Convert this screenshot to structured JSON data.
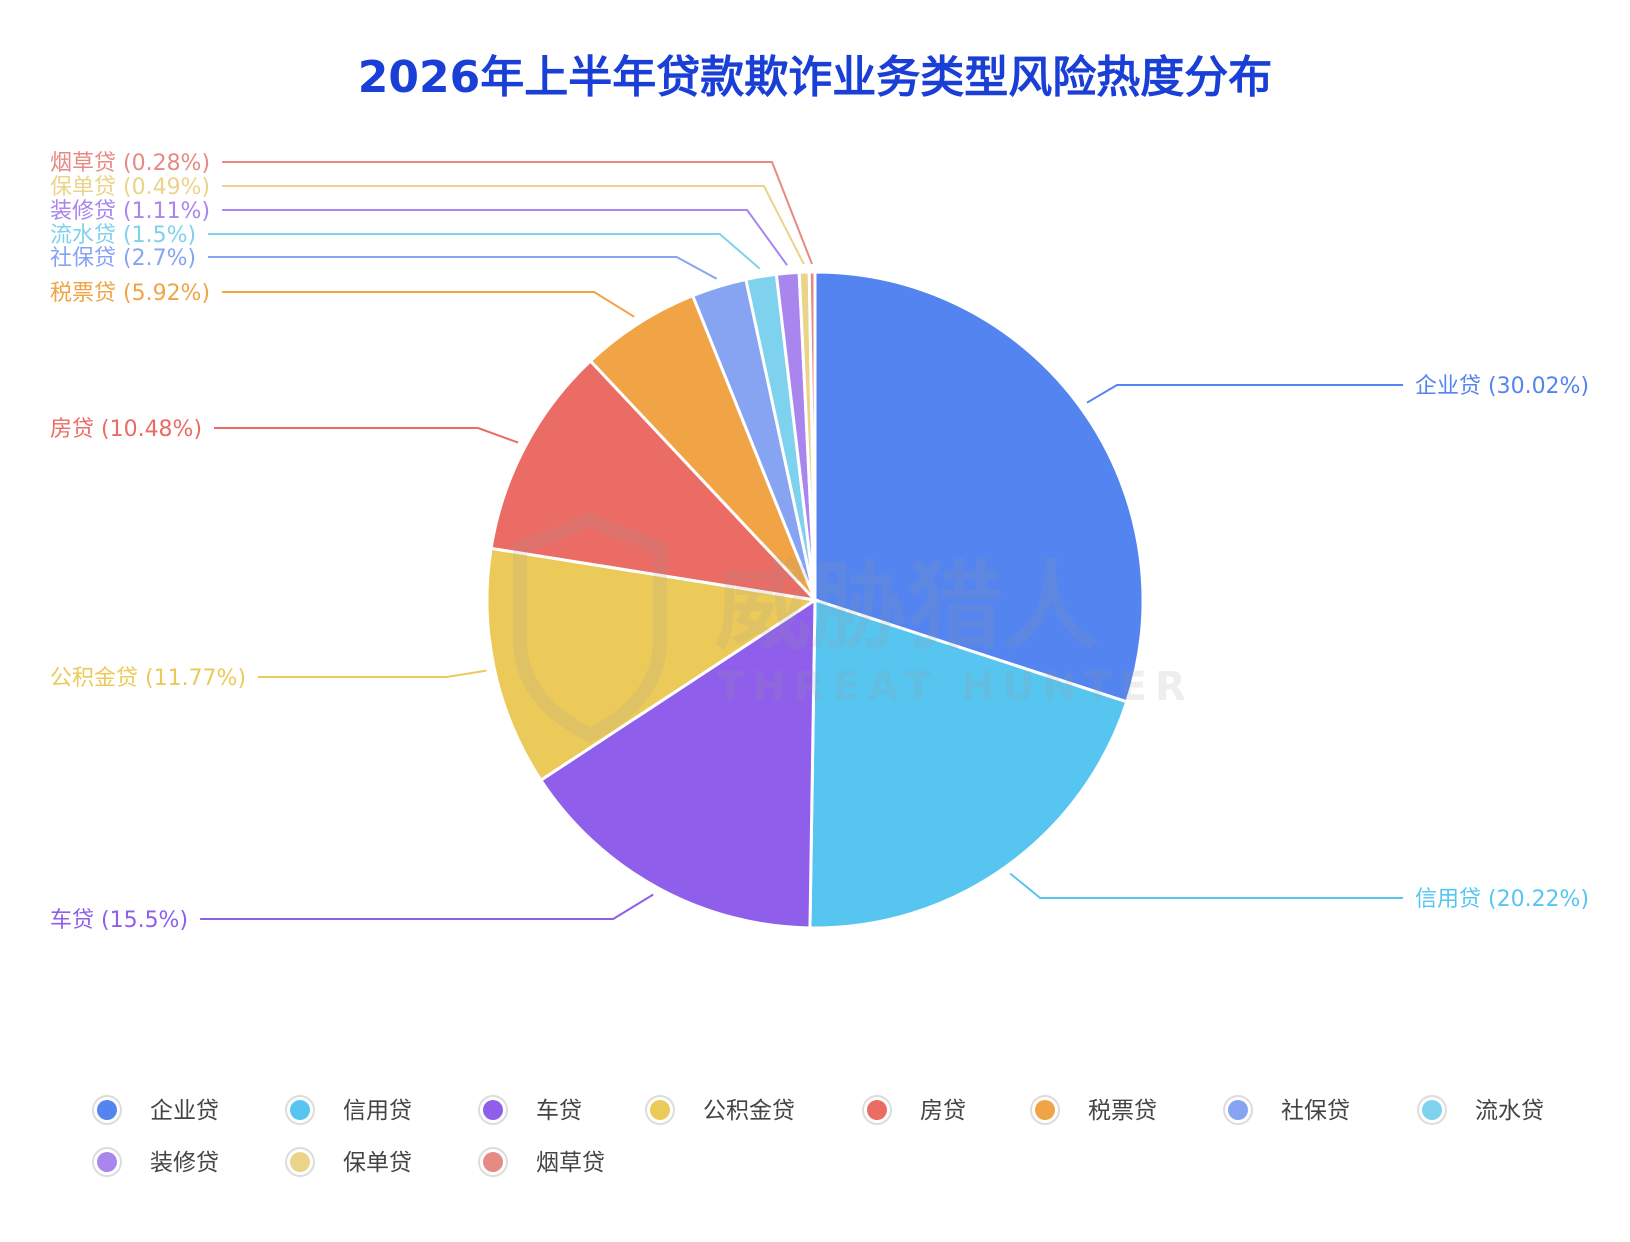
{
  "chart_data": {
    "type": "pie",
    "title": "2026年上半年贷款欺诈业务类型风险热度分布",
    "slices": [
      {
        "name": "企业贷",
        "value": 30.02,
        "label": "企业贷 (30.02%)",
        "color": "#5384ef"
      },
      {
        "name": "信用贷",
        "value": 20.22,
        "label": "信用贷 (20.22%)",
        "color": "#56c6f1"
      },
      {
        "name": "车贷",
        "value": 15.5,
        "label": "车贷 (15.5%)",
        "color": "#8f5feb"
      },
      {
        "name": "公积金贷",
        "value": 11.77,
        "label": "公积金贷 (11.77%)",
        "color": "#ecca59"
      },
      {
        "name": "房贷",
        "value": 10.48,
        "label": "房贷 (10.48%)",
        "color": "#eb6b65"
      },
      {
        "name": "税票贷",
        "value": 5.92,
        "label": "税票贷 (5.92%)",
        "color": "#f0a445"
      },
      {
        "name": "社保贷",
        "value": 2.7,
        "label": "社保贷 (2.7%)",
        "color": "#86a4f2"
      },
      {
        "name": "流水贷",
        "value": 1.5,
        "label": "流水贷 (1.5%)",
        "color": "#7fd2ee"
      },
      {
        "name": "装修贷",
        "value": 1.11,
        "label": "装修贷 (1.11%)",
        "color": "#a985ee"
      },
      {
        "name": "保单贷",
        "value": 0.49,
        "label": "保单贷 (0.49%)",
        "color": "#ecd38a"
      },
      {
        "name": "烟草贷",
        "value": 0.28,
        "label": "烟草贷 (0.28%)",
        "color": "#e68a85"
      }
    ],
    "legend": [
      "企业贷",
      "信用贷",
      "车贷",
      "公积金贷",
      "房贷",
      "税票贷",
      "社保贷",
      "流水贷",
      "装修贷",
      "保单贷",
      "烟草贷"
    ],
    "legend_position": "bottom"
  },
  "watermark": {
    "cn_text": "威胁猎人",
    "en_text": "THREAT HUNTER"
  }
}
